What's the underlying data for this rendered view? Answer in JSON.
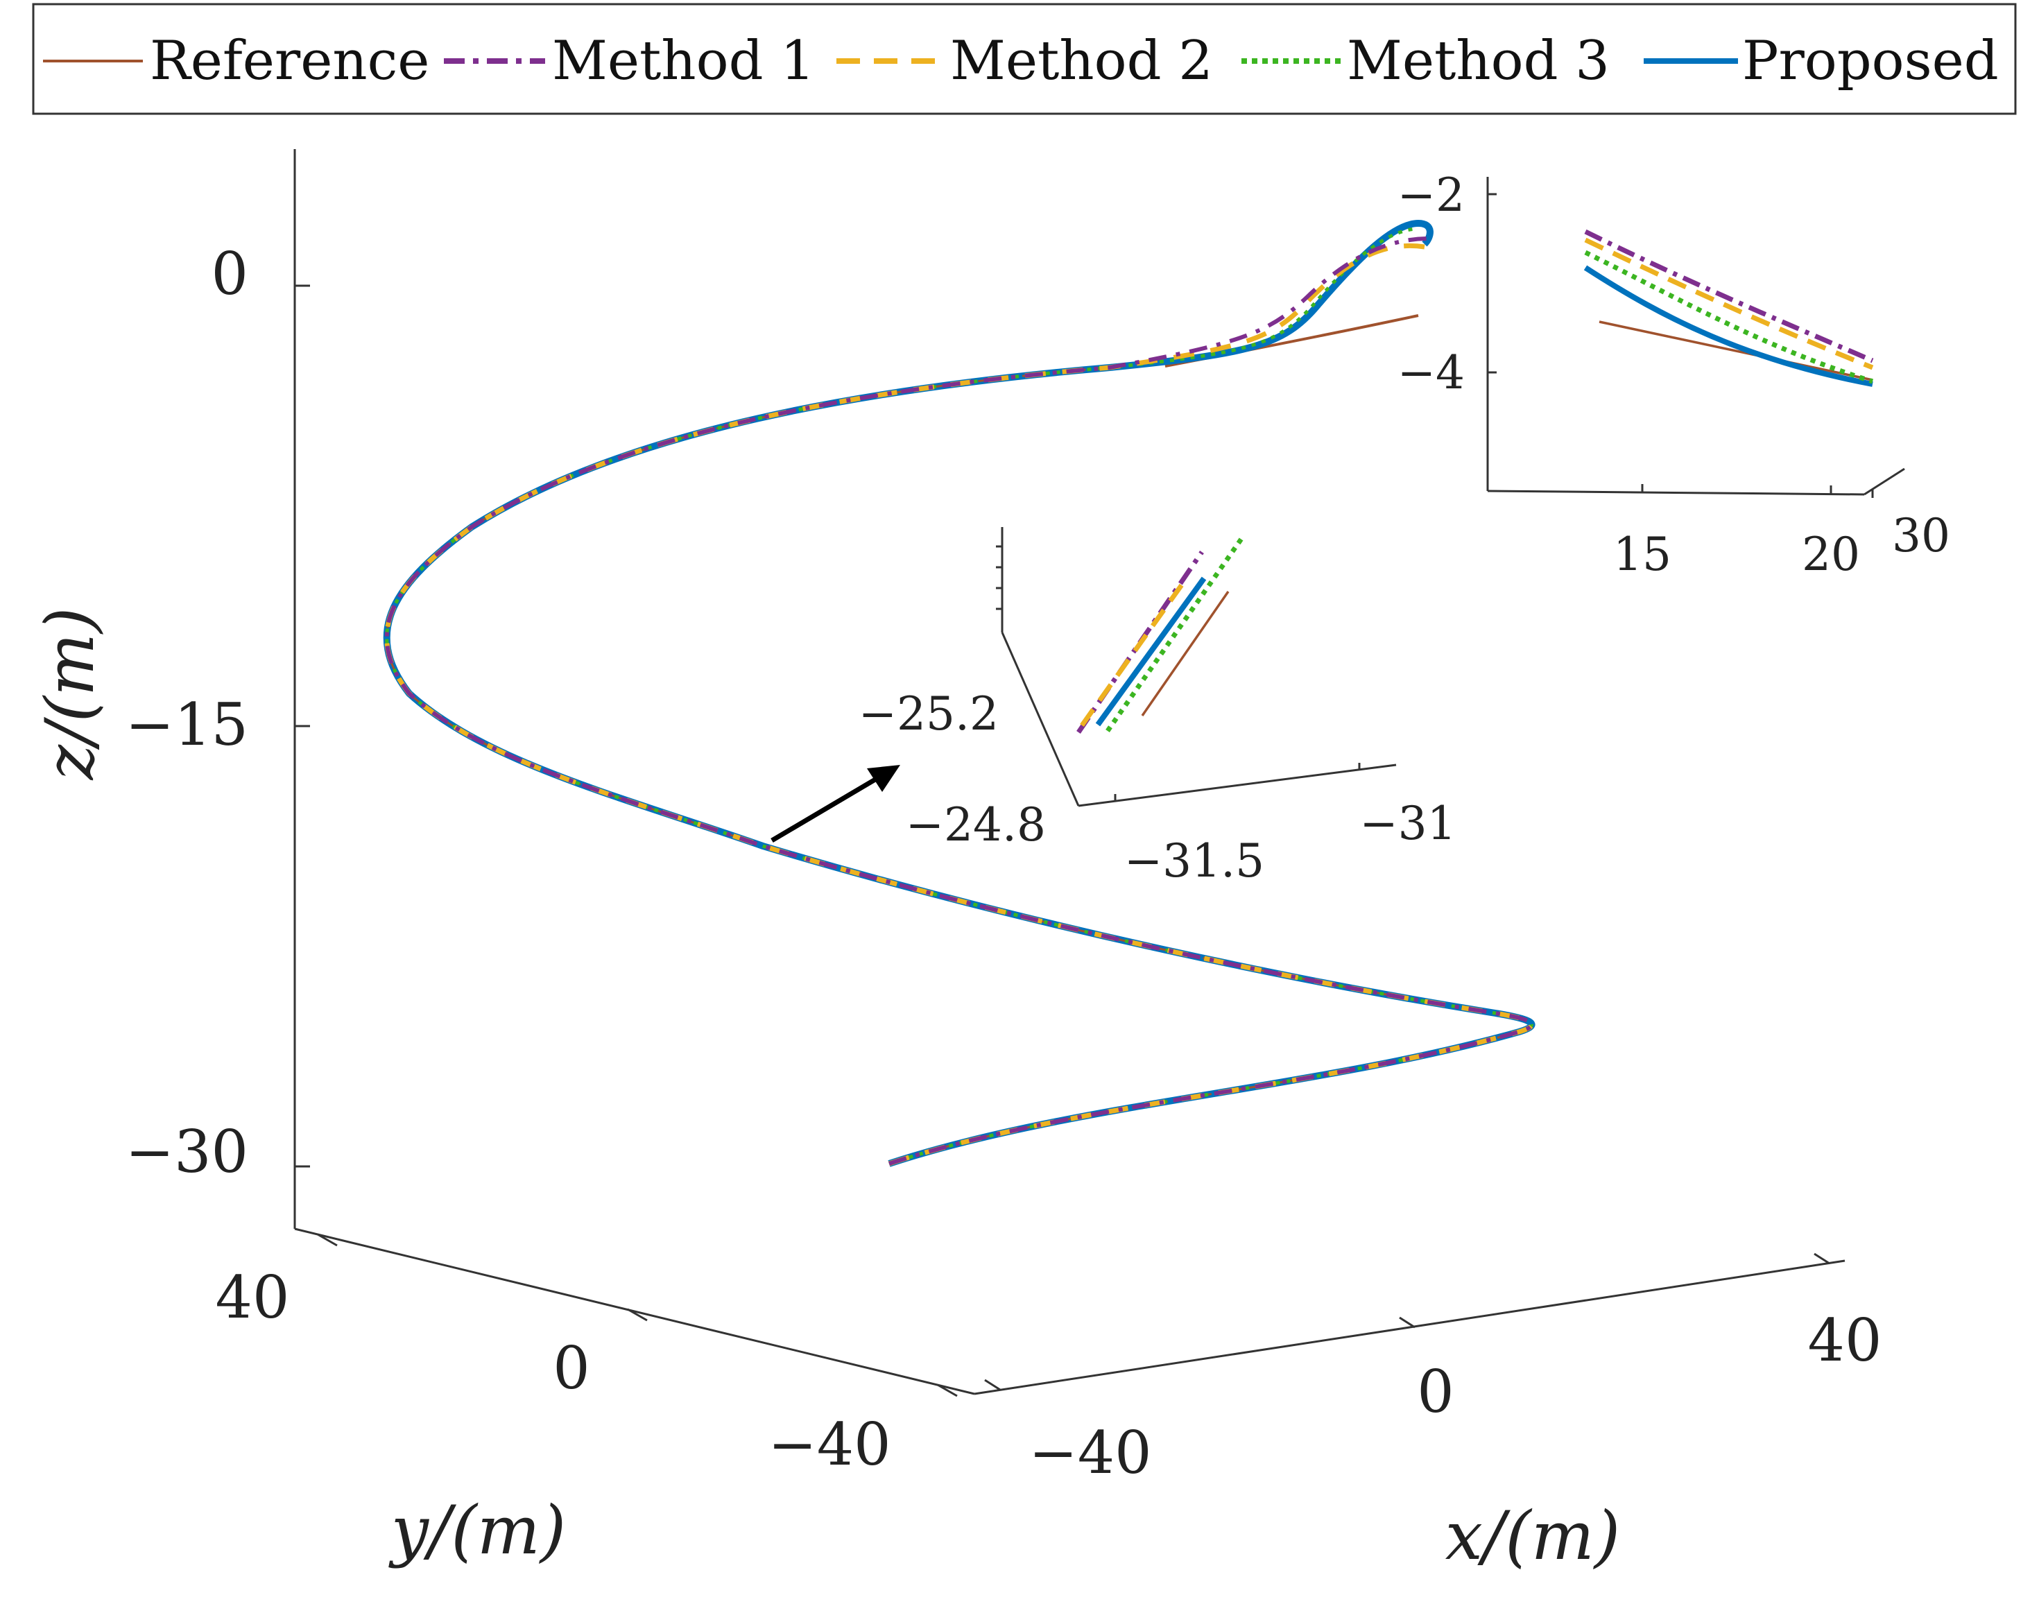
{
  "chart_data": {
    "type": "line",
    "projection": "3d",
    "legend": {
      "position": "top",
      "entries": [
        {
          "key": "reference",
          "label": "Reference",
          "color": "#A0522D",
          "dash": "solid"
        },
        {
          "key": "method1",
          "label": "Method 1",
          "color": "#7E2F8E",
          "dash": "dashdot"
        },
        {
          "key": "method2",
          "label": "Method 2",
          "color": "#EDB120",
          "dash": "dashed"
        },
        {
          "key": "method3",
          "label": "Method 3",
          "color": "#3CB521",
          "dash": "dotted"
        },
        {
          "key": "proposed",
          "label": "Proposed",
          "color": "#0072BD",
          "dash": "solid"
        }
      ]
    },
    "main": {
      "xlabel": "x/(m)",
      "ylabel": "y/(m)",
      "zlabel": "z/(m)",
      "x_ticks": [
        "−40",
        "0",
        "40"
      ],
      "y_ticks": [
        "40",
        "0",
        "−40"
      ],
      "z_ticks": [
        "0",
        "−15",
        "−30"
      ],
      "zlim": [
        -32,
        4
      ],
      "grid": false,
      "series": [
        {
          "name": "Reference",
          "points": [
            {
              "x": -5,
              "y": -5,
              "z": -30.0
            },
            {
              "x": 20,
              "y": -20,
              "z": -26.0
            },
            {
              "x": 30,
              "y": -28,
              "z": -25.3
            },
            {
              "x": 25,
              "y": -25,
              "z": -24.8
            },
            {
              "x": 5,
              "y": -10,
              "z": -22.0
            },
            {
              "x": -20,
              "y": 10,
              "z": -18.0
            },
            {
              "x": -33,
              "y": 22,
              "z": -13.0
            },
            {
              "x": -28,
              "y": 18,
              "z": -8.0
            },
            {
              "x": -10,
              "y": 5,
              "z": -4.0
            },
            {
              "x": 8,
              "y": -5,
              "z": -2.0
            },
            {
              "x": 22,
              "y": -15,
              "z": -1.0
            }
          ]
        },
        {
          "name": "Proposed",
          "points": [
            {
              "x": -5,
              "y": -5,
              "z": -30.0
            },
            {
              "x": 20,
              "y": -20,
              "z": -26.0
            },
            {
              "x": 30,
              "y": -28,
              "z": -25.3
            },
            {
              "x": 25,
              "y": -25,
              "z": -24.8
            },
            {
              "x": 5,
              "y": -10,
              "z": -22.0
            },
            {
              "x": -20,
              "y": 10,
              "z": -18.0
            },
            {
              "x": -33,
              "y": 22,
              "z": -13.0
            },
            {
              "x": -28,
              "y": 18,
              "z": -8.0
            },
            {
              "x": -10,
              "y": 5,
              "z": -4.0
            },
            {
              "x": 8,
              "y": -5,
              "z": -2.3
            },
            {
              "x": 15,
              "y": -9,
              "z": 1.5
            },
            {
              "x": 19,
              "y": -12,
              "z": 2.0
            }
          ]
        }
      ]
    },
    "inset_middle": {
      "x_ticks": [
        "−31.5",
        "−31"
      ],
      "y_ticks": [
        "−24.8"
      ],
      "z_ticks": [
        "−25.2"
      ],
      "series_order": [
        "Method 1",
        "Method 2",
        "Proposed",
        "Method 3",
        "Reference"
      ]
    },
    "inset_top": {
      "x_ticks": [
        "15",
        "20"
      ],
      "y_ticks": [
        "30"
      ],
      "z_ticks": [
        "−2",
        "−4"
      ],
      "curves": [
        {
          "name": "Method 1",
          "z_start": -2.45,
          "z_end": -3.85
        },
        {
          "name": "Method 2",
          "z_start": -2.55,
          "z_end": -4.0
        },
        {
          "name": "Method 3",
          "z_start": -2.7,
          "z_end": -4.1
        },
        {
          "name": "Proposed",
          "z_start": -2.85,
          "z_end": -4.12
        },
        {
          "name": "Reference",
          "z_start": -3.45,
          "z_end": -4.1
        }
      ]
    }
  }
}
